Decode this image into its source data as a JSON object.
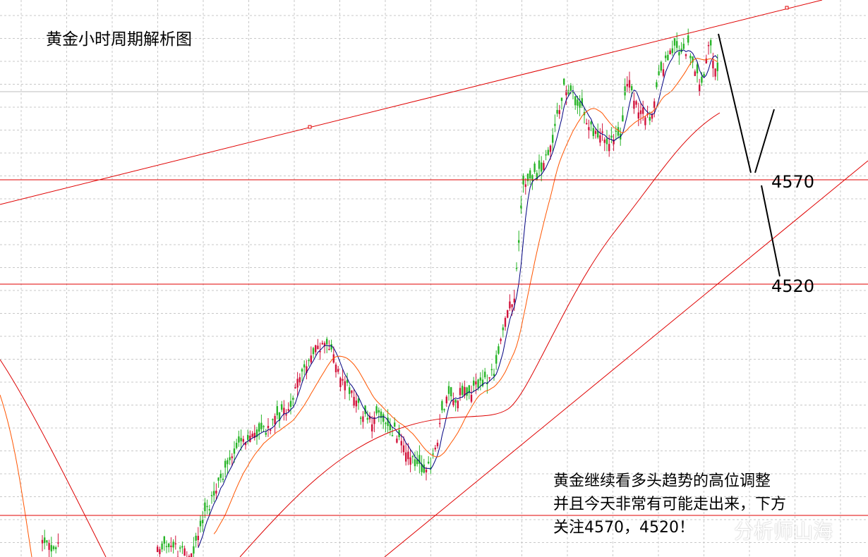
{
  "chart_data": {
    "type": "candlestick",
    "title": "黄金小时周期解析图",
    "price_levels": [
      4570,
      4520
    ],
    "annotation_lines": [
      "黄金继续看多头趋势的高位调整",
      "并且今天非常有可能走出来，下方",
      "关注4570，4520！"
    ],
    "series": [
      {
        "name": "",
        "role": "short-ma",
        "color": "#000080"
      },
      {
        "name": "",
        "role": "medium-ma",
        "color": "#ff5500"
      },
      {
        "name": "",
        "role": "long-ma",
        "color": "#dd0000"
      }
    ],
    "candles": {
      "up_color": "#d2143c",
      "down_color": "#28b428"
    },
    "grid": true,
    "watermark": "分析师山海"
  },
  "colors": {
    "level_line": "#e00000",
    "trend_line": "#e00000",
    "grid": "#c8c8c8",
    "projection": "#000000"
  }
}
